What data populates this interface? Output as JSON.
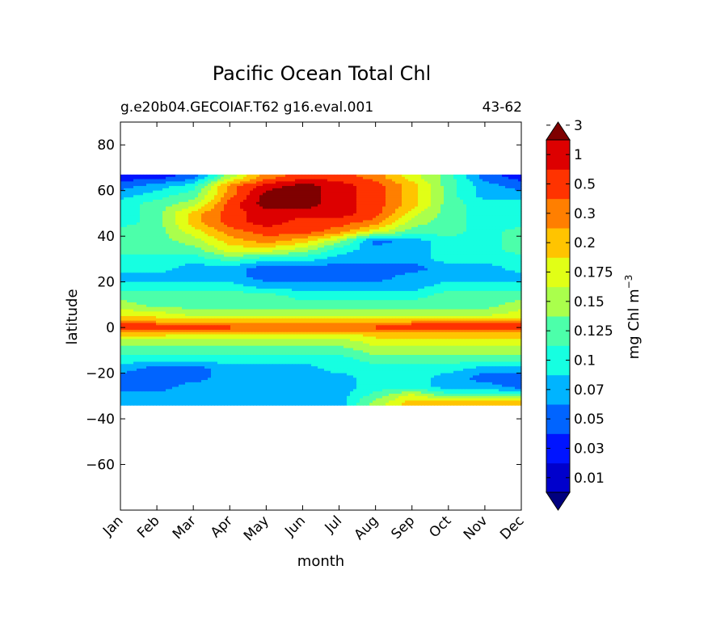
{
  "chart_data": {
    "type": "heatmap",
    "title": "Pacific Ocean Total Chl",
    "subtitle_left": "g.e20b04.GECOIAF.T62 g16.eval.001",
    "subtitle_right": "43-62",
    "xlabel": "month",
    "ylabel": "latitude",
    "x_ticks": [
      "Jan",
      "Feb",
      "Mar",
      "Apr",
      "May",
      "Jun",
      "Jul",
      "Aug",
      "Sep",
      "Oct",
      "Nov",
      "Dec"
    ],
    "y_ticks": [
      80,
      60,
      40,
      20,
      0,
      -20,
      -40,
      -60
    ],
    "ylim": [
      -80,
      90
    ],
    "data_lat_range": [
      -34,
      67
    ],
    "colorbar": {
      "label": "mg Chl m",
      "label_exponent": "−3",
      "extend": "both",
      "levels": [
        0.01,
        0.03,
        0.05,
        0.07,
        0.1,
        0.125,
        0.15,
        0.175,
        0.2,
        0.3,
        0.5,
        1,
        3
      ],
      "level_labels": [
        "0.01",
        "0.03",
        "0.05",
        "0.07",
        "0.1",
        "0.125",
        "0.15",
        "0.175",
        "0.2",
        "0.3",
        "0.5",
        "1",
        "3"
      ],
      "colors": [
        "#00007f",
        "#0000cc",
        "#0014ff",
        "#0064ff",
        "#00b4ff",
        "#16ffe1",
        "#4cffaa",
        "#aaff4c",
        "#e1ff16",
        "#ffc400",
        "#ff7f00",
        "#ff3300",
        "#dd0000",
        "#7f0000"
      ]
    },
    "approx_field": {
      "note": "Chl class index (0=<0.01 ... 13=>3) per latitude row, Jan..Dec",
      "latitudes": [
        66,
        62,
        58,
        54,
        50,
        46,
        42,
        38,
        34,
        30,
        26,
        22,
        18,
        14,
        10,
        6,
        3,
        1,
        0,
        -1,
        -3,
        -6,
        -10,
        -14,
        -18,
        -22,
        -26,
        -30,
        -33
      ],
      "classes": [
        [
          2,
          2,
          3,
          7,
          10,
          11,
          11,
          10,
          8,
          6,
          3,
          2
        ],
        [
          3,
          4,
          5,
          10,
          12,
          13,
          12,
          11,
          9,
          6,
          4,
          3
        ],
        [
          4,
          5,
          6,
          10,
          13,
          13,
          12,
          11,
          9,
          6,
          4,
          4
        ],
        [
          5,
          6,
          7,
          11,
          13,
          13,
          12,
          11,
          9,
          6,
          5,
          5
        ],
        [
          5,
          6,
          9,
          11,
          12,
          12,
          12,
          11,
          8,
          6,
          5,
          5
        ],
        [
          5,
          6,
          9,
          11,
          12,
          11,
          11,
          10,
          7,
          6,
          5,
          5
        ],
        [
          6,
          6,
          8,
          10,
          11,
          11,
          10,
          8,
          6,
          6,
          5,
          6
        ],
        [
          6,
          6,
          7,
          9,
          10,
          9,
          7,
          3,
          4,
          5,
          5,
          6
        ],
        [
          6,
          6,
          6,
          8,
          8,
          7,
          5,
          4,
          4,
          5,
          5,
          6
        ],
        [
          5,
          5,
          5,
          6,
          5,
          5,
          4,
          4,
          4,
          5,
          5,
          5
        ],
        [
          5,
          5,
          4,
          4,
          3,
          3,
          3,
          3,
          3,
          4,
          4,
          5
        ],
        [
          4,
          4,
          4,
          4,
          3,
          3,
          3,
          3,
          4,
          4,
          4,
          4
        ],
        [
          5,
          5,
          5,
          5,
          4,
          4,
          4,
          4,
          4,
          5,
          5,
          5
        ],
        [
          6,
          6,
          6,
          6,
          6,
          5,
          5,
          5,
          5,
          6,
          6,
          6
        ],
        [
          7,
          6,
          6,
          6,
          6,
          6,
          6,
          6,
          6,
          6,
          6,
          7
        ],
        [
          8,
          8,
          7,
          7,
          7,
          7,
          7,
          7,
          7,
          7,
          7,
          8
        ],
        [
          9,
          9,
          9,
          9,
          9,
          9,
          9,
          9,
          9,
          9,
          9,
          9
        ],
        [
          11,
          11,
          10,
          10,
          10,
          10,
          10,
          10,
          11,
          11,
          11,
          11
        ],
        [
          11,
          11,
          11,
          11,
          10,
          10,
          10,
          11,
          11,
          11,
          11,
          11
        ],
        [
          10,
          10,
          10,
          10,
          10,
          10,
          10,
          10,
          10,
          10,
          10,
          10
        ],
        [
          9,
          9,
          8,
          8,
          8,
          8,
          8,
          9,
          9,
          9,
          9,
          9
        ],
        [
          7,
          7,
          7,
          7,
          7,
          7,
          7,
          8,
          8,
          8,
          8,
          8
        ],
        [
          6,
          6,
          6,
          6,
          6,
          6,
          6,
          7,
          7,
          7,
          7,
          7
        ],
        [
          5,
          5,
          5,
          5,
          5,
          5,
          5,
          6,
          6,
          6,
          6,
          6
        ],
        [
          4,
          3,
          3,
          4,
          4,
          4,
          5,
          5,
          5,
          5,
          4,
          4
        ],
        [
          3,
          3,
          3,
          4,
          4,
          4,
          4,
          5,
          5,
          4,
          3,
          3
        ],
        [
          3,
          3,
          4,
          4,
          4,
          4,
          4,
          5,
          5,
          4,
          4,
          3
        ],
        [
          4,
          4,
          4,
          4,
          4,
          4,
          4,
          6,
          8,
          6,
          6,
          6
        ],
        [
          4,
          4,
          4,
          4,
          4,
          4,
          4,
          7,
          9,
          9,
          9,
          9
        ]
      ]
    }
  }
}
